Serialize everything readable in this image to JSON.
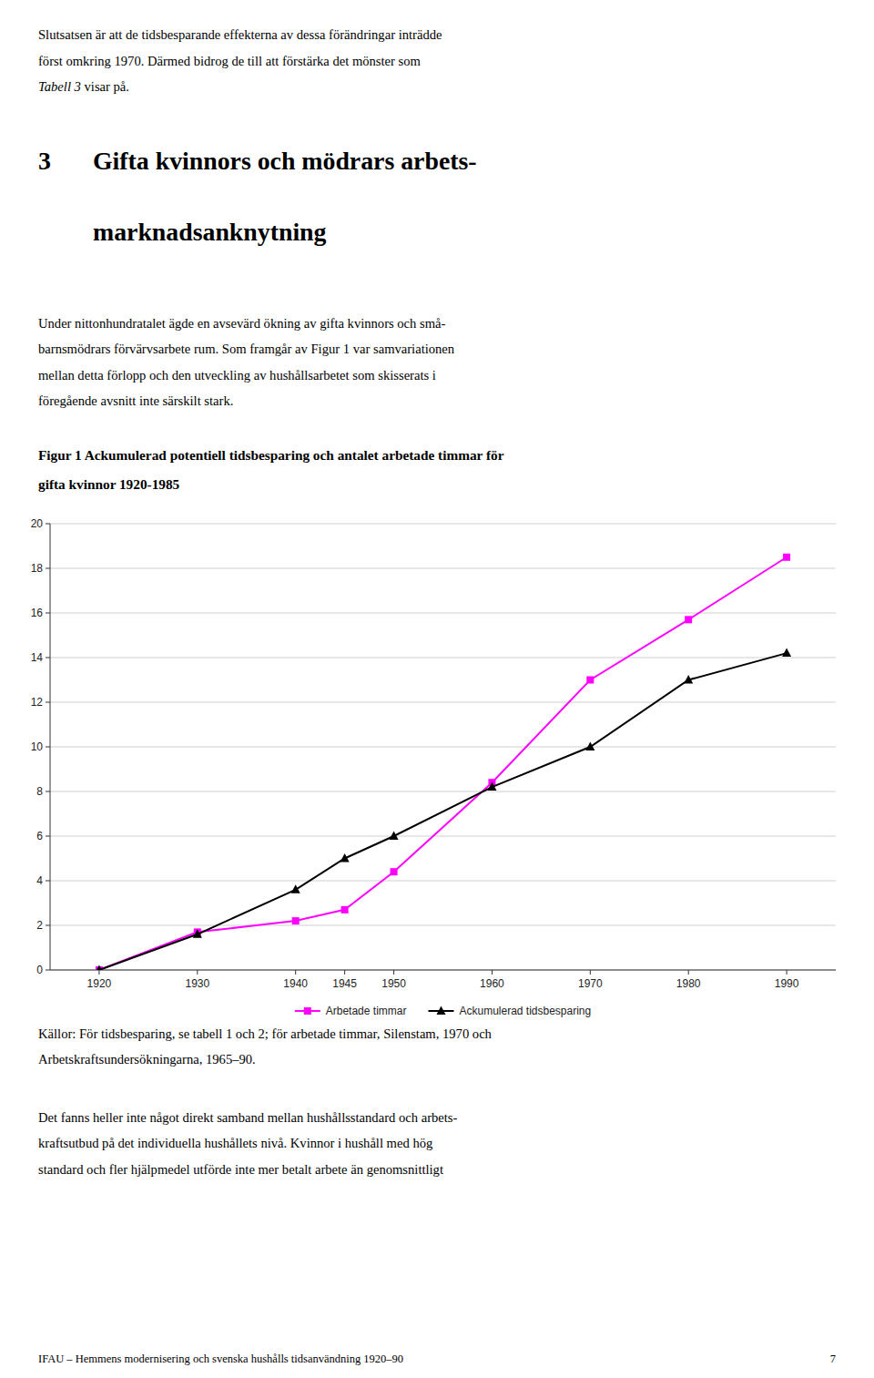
{
  "chart_data": {
    "type": "line",
    "x": [
      1920,
      1930,
      1940,
      1945,
      1950,
      1960,
      1970,
      1980,
      1990
    ],
    "series": [
      {
        "name": "Arbetade timmar",
        "color": "#ff00ff",
        "marker": "square",
        "values": [
          0.0,
          1.7,
          2.2,
          2.7,
          4.4,
          8.4,
          13.0,
          15.7,
          18.5
        ]
      },
      {
        "name": "Ackumulerad tidsbesparing",
        "color": "#000000",
        "marker": "triangle",
        "values": [
          0.0,
          1.6,
          3.6,
          5.0,
          6.0,
          8.2,
          10.0,
          13.0,
          14.2
        ]
      }
    ],
    "xlim": [
      1915,
      1995
    ],
    "xticks": [
      1920,
      1930,
      1940,
      1945,
      1950,
      1960,
      1970,
      1980,
      1990
    ],
    "ylim": [
      0,
      20
    ],
    "yticks": [
      0,
      2,
      4,
      6,
      8,
      10,
      12,
      14,
      16,
      18,
      20
    ],
    "grid": true,
    "legend": "bottom"
  },
  "page": {
    "para1_lines": [
      "Slutsatsen är att de tidsbesparande effekterna av dessa förändringar inträdde",
      "först omkring 1970. Därmed bidrog de till att förstärka det mönster som"
    ],
    "para1_italic": "Tabell 3",
    "para1_end": " visar på.",
    "heading_number": "3",
    "heading_line1": "Gifta kvinnors och mödrars arbets-",
    "heading_line2": "marknadsanknytning",
    "para2_lines": [
      "Under nittonhundratalet ägde en avsevärd ökning av gifta kvinnors och små-",
      "barnsmödrars förvärvsarbete rum. Som framgår av Figur 1 var samvariationen",
      "mellan detta förlopp och den utveckling av hushållsarbetet som skisserats i",
      "föregående avsnitt inte särskilt stark."
    ],
    "caption_lines": [
      "Figur 1 Ackumulerad potentiell tidsbesparing och antalet arbetade timmar för",
      "gifta kvinnor 1920-1985"
    ],
    "source_lines": [
      "Källor: För tidsbesparing, se tabell 1 och 2; för arbetade timmar, Silenstam, 1970 och",
      "Arbetskraftsundersökningarna, 1965–90."
    ],
    "para3_lines": [
      "Det fanns heller inte något direkt samband mellan hushållsstandard och arbets-",
      "kraftsutbud på det individuella hushållets nivå. Kvinnor i hushåll med hög",
      "standard och fler hjälpmedel utförde inte mer betalt arbete än genomsnittligt"
    ],
    "footer_left": "IFAU – Hemmens modernisering och svenska hushålls tidsanvändning 1920–90",
    "footer_right": "7"
  }
}
